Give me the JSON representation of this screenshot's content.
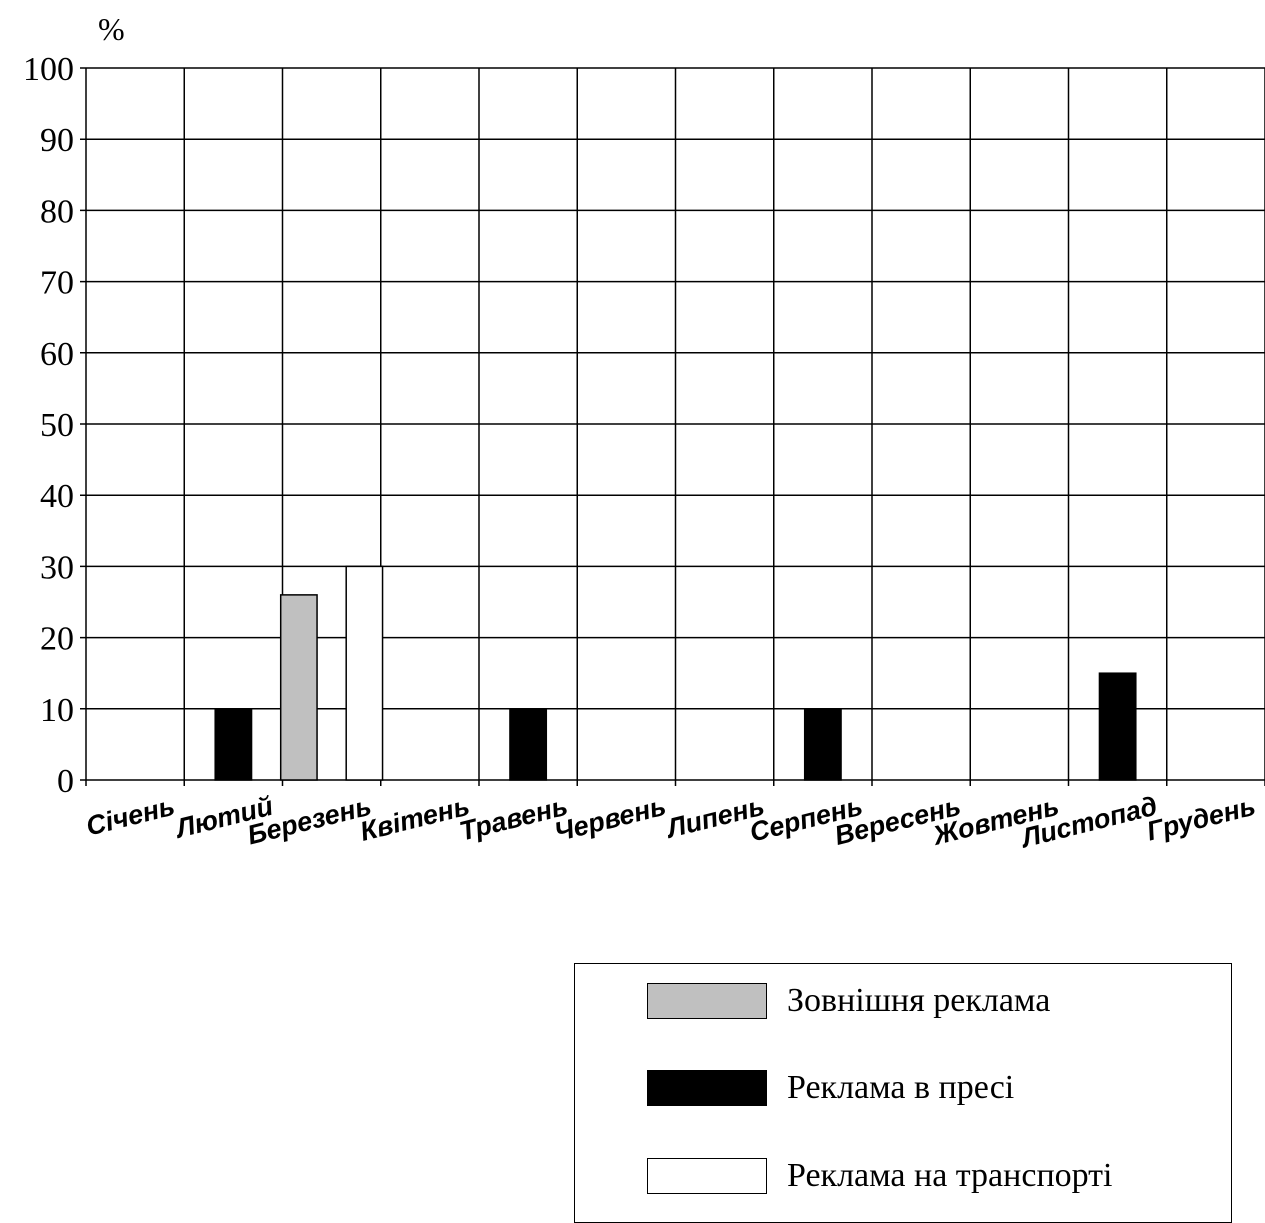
{
  "chart_data": {
    "type": "bar",
    "unit_label": "%",
    "ylim": [
      0,
      100
    ],
    "yticks": [
      0,
      10,
      20,
      30,
      40,
      50,
      60,
      70,
      80,
      90,
      100
    ],
    "grid": true,
    "categories": [
      "Січень",
      "Лютий",
      "Березень",
      "Квітень",
      "Травень",
      "Червень",
      "Липень",
      "Серпень",
      "Вересень",
      "Жовтень",
      "Листопад",
      "Грудень"
    ],
    "series": [
      {
        "name": "Зовнішня реклама",
        "color": "#c0c0c0",
        "values": [
          0,
          0,
          26,
          0,
          0,
          0,
          0,
          0,
          0,
          0,
          0,
          0
        ]
      },
      {
        "name": "Реклама в пресі",
        "color": "#000000",
        "values": [
          0,
          10,
          0,
          0,
          10,
          0,
          0,
          10,
          0,
          0,
          15,
          0
        ]
      },
      {
        "name": "Реклама на транспорті",
        "color": "#ffffff",
        "values": [
          0,
          0,
          30,
          0,
          0,
          0,
          0,
          0,
          0,
          0,
          0,
          0
        ]
      }
    ],
    "legend_position": "bottom-right"
  }
}
